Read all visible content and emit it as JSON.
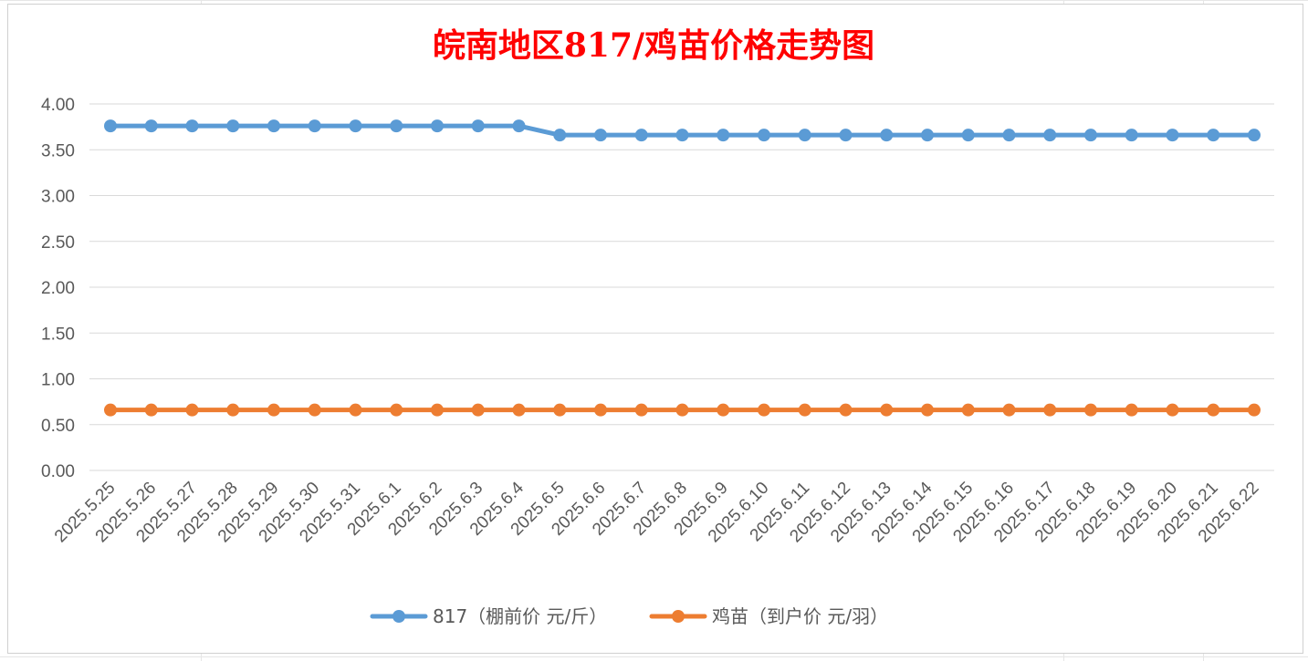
{
  "colors": {
    "title": "#ff0000",
    "series_817": "#5b9bd5",
    "series_chick": "#ed7d31",
    "gridline": "#d9d9d9",
    "axis_text": "#595959"
  },
  "chart_data": {
    "type": "line",
    "title": "皖南地区817/鸡苗价格走势图",
    "xlabel": "",
    "ylabel": "",
    "ylim": [
      0,
      4
    ],
    "yticks": [
      "0.00",
      "0.50",
      "1.00",
      "1.50",
      "2.00",
      "2.50",
      "3.00",
      "3.50",
      "4.00"
    ],
    "grid": true,
    "legend_position": "bottom",
    "categories": [
      "2025.5.25",
      "2025.5.26",
      "2025.5.27",
      "2025.5.28",
      "2025.5.29",
      "2025.5.30",
      "2025.5.31",
      "2025.6.1",
      "2025.6.2",
      "2025.6.3",
      "2025.6.4",
      "2025.6.5",
      "2025.6.6",
      "2025.6.7",
      "2025.6.8",
      "2025.6.9",
      "2025.6.10",
      "2025.6.11",
      "2025.6.12",
      "2025.6.13",
      "2025.6.14",
      "2025.6.15",
      "2025.6.16",
      "2025.6.17",
      "2025.6.18",
      "2025.6.19",
      "2025.6.20",
      "2025.6.21",
      "2025.6.22"
    ],
    "series": [
      {
        "name": "817（棚前价 元/斤）",
        "color": "#5b9bd5",
        "values": [
          3.76,
          3.76,
          3.76,
          3.76,
          3.76,
          3.76,
          3.76,
          3.76,
          3.76,
          3.76,
          3.76,
          3.66,
          3.66,
          3.66,
          3.66,
          3.66,
          3.66,
          3.66,
          3.66,
          3.66,
          3.66,
          3.66,
          3.66,
          3.66,
          3.66,
          3.66,
          3.66,
          3.66,
          3.66
        ]
      },
      {
        "name": "鸡苗（到户价 元/羽）",
        "color": "#ed7d31",
        "values": [
          0.66,
          0.66,
          0.66,
          0.66,
          0.66,
          0.66,
          0.66,
          0.66,
          0.66,
          0.66,
          0.66,
          0.66,
          0.66,
          0.66,
          0.66,
          0.66,
          0.66,
          0.66,
          0.66,
          0.66,
          0.66,
          0.66,
          0.66,
          0.66,
          0.66,
          0.66,
          0.66,
          0.66,
          0.66
        ]
      }
    ]
  }
}
